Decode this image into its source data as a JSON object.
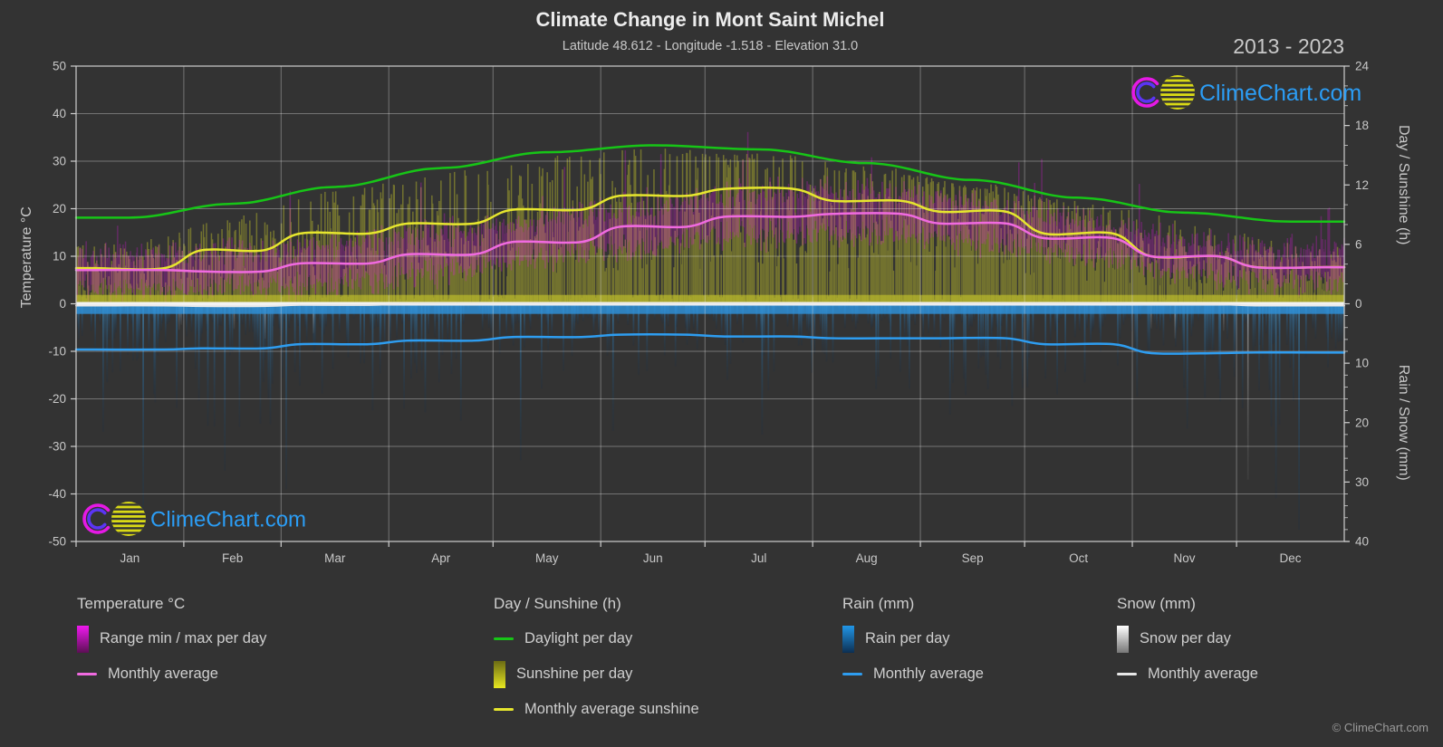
{
  "header": {
    "title": "Climate Change in Mont Saint Michel",
    "subtitle": "Latitude 48.612 - Longitude -1.518 - Elevation 31.0",
    "year_range": "2013 - 2023"
  },
  "watermark": {
    "logo_text": "ClimeChart.com"
  },
  "footer": {
    "copyright": "© ClimeChart.com"
  },
  "legend": {
    "columns": [
      {
        "heading": "Temperature °C",
        "items": [
          {
            "label": "Range min / max per day",
            "marker": {
              "kind": "gradient",
              "from": "#f018f0",
              "to": "#5c0f54"
            }
          },
          {
            "label": "Monthly average",
            "marker": {
              "kind": "line",
              "color": "#f06ae0"
            }
          }
        ]
      },
      {
        "heading": "Day / Sunshine (h)",
        "items": [
          {
            "label": "Daylight per day",
            "marker": {
              "kind": "line",
              "color": "#17c517"
            }
          },
          {
            "label": "Sunshine per day",
            "marker": {
              "kind": "gradient",
              "from": "#6b6b14",
              "to": "#e8e820"
            }
          },
          {
            "label": "Monthly average sunshine",
            "marker": {
              "kind": "line",
              "color": "#e6e62e"
            }
          }
        ]
      },
      {
        "heading": "Rain (mm)",
        "items": [
          {
            "label": "Rain per day",
            "marker": {
              "kind": "gradient",
              "from": "#2196e8",
              "to": "#0d2f52"
            }
          },
          {
            "label": "Monthly average",
            "marker": {
              "kind": "line",
              "color": "#2e9df0"
            }
          }
        ]
      },
      {
        "heading": "Snow (mm)",
        "items": [
          {
            "label": "Snow per day",
            "marker": {
              "kind": "gradient",
              "from": "#ffffff",
              "to": "#777777"
            }
          },
          {
            "label": "Monthly average",
            "marker": {
              "kind": "line",
              "color": "#e8e8e8"
            }
          }
        ]
      }
    ]
  },
  "chart_data": {
    "type": "composite",
    "title": "Climate Change in Mont Saint Michel",
    "subtitle": "Latitude 48.612 - Longitude -1.518 - Elevation 31.0",
    "period": "2013 - 2023",
    "months": [
      "Jan",
      "Feb",
      "Mar",
      "Apr",
      "May",
      "Jun",
      "Jul",
      "Aug",
      "Sep",
      "Oct",
      "Nov",
      "Dec"
    ],
    "month_days": [
      31,
      28,
      31,
      30,
      31,
      30,
      31,
      31,
      30,
      31,
      30,
      31
    ],
    "axes": {
      "left": {
        "label": "Temperature °C",
        "min": -50,
        "max": 50,
        "ticks": [
          50,
          40,
          30,
          20,
          10,
          0,
          -10,
          -20,
          -30,
          -40,
          -50
        ]
      },
      "right_top": {
        "label": "Day / Sunshine (h)",
        "min": 0,
        "max": 24,
        "ticks": [
          24,
          18,
          12,
          6,
          0
        ],
        "minor_step": 2
      },
      "right_bottom": {
        "label": "Rain / Snow (mm)",
        "min": 0,
        "max": 40,
        "ticks": [
          0,
          10,
          20,
          30,
          40
        ],
        "minor_step": 2,
        "inverted": true
      },
      "grid": true
    },
    "series": [
      {
        "name": "Daylight per day",
        "type": "line",
        "unit": "h",
        "color": "#17c517",
        "values": [
          8.7,
          10.1,
          11.8,
          13.7,
          15.3,
          16.0,
          15.6,
          14.2,
          12.5,
          10.7,
          9.2,
          8.3
        ]
      },
      {
        "name": "Monthly average sunshine",
        "type": "line",
        "unit": "h",
        "color": "#e6e62e",
        "values": [
          3.6,
          5.4,
          7.1,
          8.1,
          9.5,
          10.9,
          11.6,
          10.4,
          9.3,
          7.1,
          4.8,
          3.7
        ]
      },
      {
        "name": "Sunshine per day",
        "type": "bar",
        "unit": "h",
        "color": "#c9c92b",
        "monthly_average": [
          3.6,
          5.4,
          7.1,
          8.1,
          9.5,
          10.9,
          11.6,
          10.4,
          9.3,
          7.1,
          4.8,
          3.7
        ]
      },
      {
        "name": "Range min / max per day",
        "type": "bar",
        "unit": "°C",
        "color": "#e615e6",
        "monthly_avg_min": [
          3.9,
          3.4,
          5.0,
          6.8,
          9.8,
          12.8,
          14.9,
          15.3,
          13.2,
          10.8,
          7.2,
          4.7
        ],
        "monthly_avg_max": [
          10.3,
          10.4,
          12.4,
          14.6,
          17.3,
          20.6,
          22.8,
          23.4,
          21.0,
          17.3,
          13.0,
          10.7
        ]
      },
      {
        "name": "Monthly average temperature",
        "type": "line",
        "unit": "°C",
        "color": "#f06ae0",
        "values": [
          7.1,
          6.8,
          8.5,
          10.4,
          13.0,
          16.2,
          18.3,
          18.9,
          16.9,
          13.8,
          10.0,
          7.7
        ]
      },
      {
        "name": "Rain per day",
        "type": "bar",
        "unit": "mm",
        "color": "#2f8fd6",
        "monthly_average": [
          7.7,
          7.5,
          6.8,
          6.2,
          5.6,
          5.2,
          5.5,
          5.8,
          5.8,
          6.8,
          8.3,
          8.2
        ]
      },
      {
        "name": "Monthly average rain",
        "type": "line",
        "unit": "mm",
        "color": "#2e9df0",
        "values": [
          7.7,
          7.5,
          6.8,
          6.2,
          5.6,
          5.2,
          5.5,
          5.8,
          5.8,
          6.8,
          8.3,
          8.2
        ]
      },
      {
        "name": "Snow per day",
        "type": "bar",
        "unit": "mm",
        "color": "#dcdcdc",
        "monthly_average": [
          0.3,
          0.4,
          0.2,
          0,
          0,
          0,
          0,
          0,
          0,
          0,
          0.1,
          0.3
        ]
      },
      {
        "name": "Monthly average snow",
        "type": "line",
        "unit": "mm",
        "color": "#e8e8e8",
        "values": [
          0.3,
          0.4,
          0.2,
          0,
          0,
          0,
          0,
          0,
          0,
          0,
          0.1,
          0.3
        ]
      }
    ],
    "noise_seed": 20132023
  }
}
